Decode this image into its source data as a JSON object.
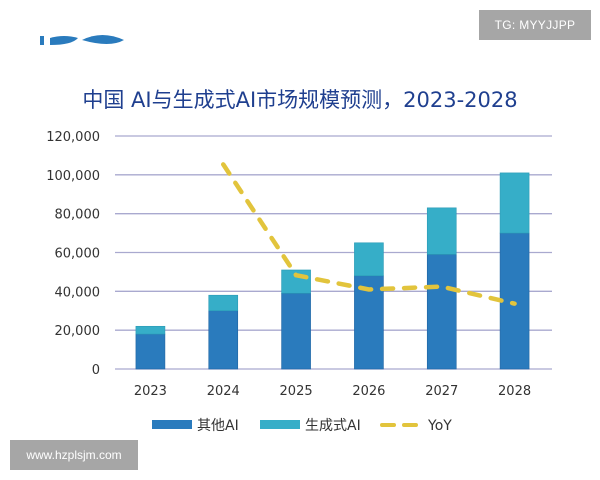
{
  "watermarks": {
    "top_right": "TG: MYYJJPP",
    "bottom_left": "www.hzplsjm.com"
  },
  "colors": {
    "other_ai": "#2a7bbd",
    "gen_ai": "#36aec8",
    "yoy": "#e2c43c",
    "grid": "#a9a9cf",
    "title": "#1f3f8f",
    "text": "#333333"
  },
  "chart_data": {
    "type": "bar",
    "stacked": true,
    "title": "中国 AI与生成式AI市场规模预测，2023-2028",
    "xlabel": "",
    "ylabel": "",
    "categories": [
      "2023",
      "2024",
      "2025",
      "2026",
      "2027",
      "2028"
    ],
    "ylim": [
      0,
      120000
    ],
    "yticks": [
      "0",
      "20,000",
      "40,000",
      "60,000",
      "80,000",
      "100,000",
      "120,000"
    ],
    "ytick_values": [
      0,
      20000,
      40000,
      60000,
      80000,
      100000,
      120000
    ],
    "grid": true,
    "legend_position": "bottom",
    "series": [
      {
        "name": "其他AI",
        "type": "bar",
        "values": [
          18000,
          30000,
          39000,
          48000,
          59000,
          70000
        ]
      },
      {
        "name": "生成式AI",
        "type": "bar",
        "values": [
          4000,
          8000,
          12000,
          17000,
          24000,
          31000
        ]
      },
      {
        "name": "YoY",
        "type": "line",
        "dashed": true,
        "unit": "%",
        "secondary_axis_hidden": true,
        "secondary_ylim": [
          0,
          82
        ],
        "values": [
          null,
          72,
          33,
          28,
          29,
          23
        ]
      }
    ]
  }
}
